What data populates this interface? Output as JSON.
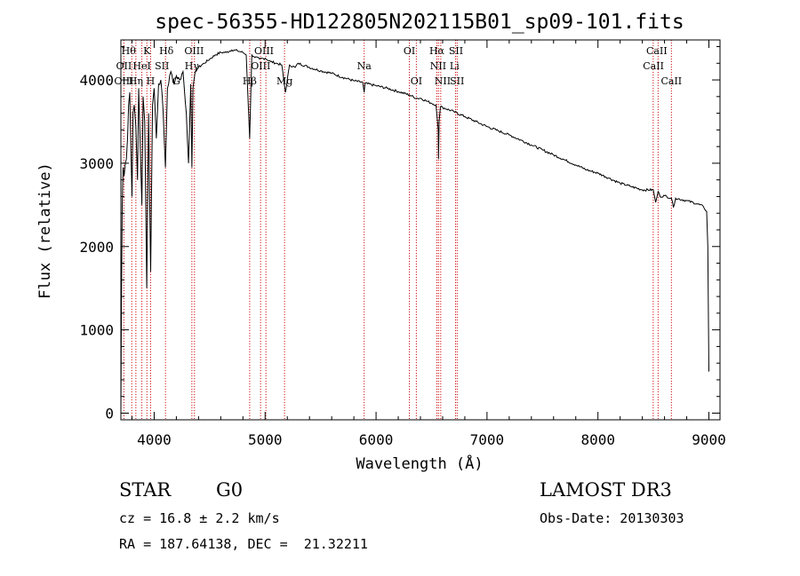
{
  "chart_data": {
    "type": "line",
    "title": "spec-56355-HD122805N202115B01_sp09-101.fits",
    "xlabel": "Wavelength (Å)",
    "ylabel": "Flux (relative)",
    "xlim": [
      3700,
      9100
    ],
    "ylim": [
      -80,
      4480
    ],
    "xticks": [
      4000,
      5000,
      6000,
      7000,
      8000,
      9000
    ],
    "yticks": [
      0,
      1000,
      2000,
      3000,
      4000
    ],
    "series": [
      {
        "name": "spectrum",
        "x": [
          3700,
          3705,
          3712,
          3720,
          3730,
          3740,
          3750,
          3760,
          3770,
          3780,
          3790,
          3800,
          3810,
          3820,
          3835,
          3850,
          3860,
          3875,
          3889,
          3900,
          3915,
          3933,
          3950,
          3968,
          3985,
          4000,
          4020,
          4040,
          4060,
          4080,
          4101,
          4120,
          4150,
          4180,
          4200,
          4230,
          4260,
          4290,
          4310,
          4330,
          4340,
          4350,
          4370,
          4400,
          4450,
          4500,
          4550,
          4600,
          4650,
          4700,
          4750,
          4800,
          4830,
          4861,
          4880,
          4900,
          4950,
          5000,
          5050,
          5100,
          5150,
          5183,
          5220,
          5270,
          5300,
          5400,
          5500,
          5600,
          5700,
          5800,
          5880,
          5893,
          5900,
          6000,
          6100,
          6200,
          6300,
          6363,
          6400,
          6450,
          6500,
          6540,
          6560,
          6563,
          6568,
          6580,
          6600,
          6700,
          6800,
          6900,
          7000,
          7100,
          7200,
          7300,
          7400,
          7500,
          7600,
          7700,
          7800,
          7900,
          8000,
          8100,
          8200,
          8300,
          8400,
          8498,
          8520,
          8542,
          8560,
          8600,
          8662,
          8680,
          8700,
          8800,
          8900,
          8950,
          8980,
          8990,
          9000
        ],
        "values": [
          0,
          1300,
          2500,
          2950,
          2850,
          3000,
          3050,
          3300,
          3700,
          3850,
          3200,
          2600,
          3600,
          3700,
          3450,
          2800,
          3900,
          3200,
          2500,
          3800,
          3500,
          1500,
          3600,
          1700,
          3700,
          3900,
          3300,
          3950,
          4000,
          3650,
          2950,
          3900,
          4100,
          3950,
          4050,
          4000,
          4100,
          3600,
          3000,
          3950,
          2950,
          3900,
          4100,
          4150,
          4200,
          4250,
          4300,
          4330,
          4330,
          4360,
          4350,
          4330,
          4300,
          3300,
          4300,
          4280,
          4250,
          4260,
          4220,
          4200,
          4180,
          3850,
          4180,
          4150,
          4200,
          4150,
          4110,
          4080,
          4030,
          3990,
          3970,
          3850,
          3960,
          3930,
          3900,
          3860,
          3820,
          3780,
          3780,
          3750,
          3720,
          3700,
          3400,
          3050,
          3500,
          3680,
          3670,
          3620,
          3560,
          3500,
          3440,
          3390,
          3340,
          3280,
          3220,
          3160,
          3100,
          3040,
          2980,
          2920,
          2880,
          2820,
          2760,
          2720,
          2680,
          2680,
          2530,
          2660,
          2600,
          2610,
          2580,
          2470,
          2580,
          2550,
          2510,
          2480,
          2420,
          2000,
          500
        ]
      }
    ],
    "reference_lines": [
      {
        "name": "OII",
        "x": 3727
      },
      {
        "name": "Hθ",
        "x": 3798
      },
      {
        "name": "Hη",
        "x": 3835
      },
      {
        "name": "HeI",
        "x": 3889
      },
      {
        "name": "K",
        "x": 3934
      },
      {
        "name": "H",
        "x": 3968
      },
      {
        "name": "Hδ",
        "x": 4102
      },
      {
        "name": "Hγ",
        "x": 4340
      },
      {
        "name": "OIII",
        "x": 4363
      },
      {
        "name": "Hβ",
        "x": 4861
      },
      {
        "name": "OIII",
        "x": 4959
      },
      {
        "name": "OIII",
        "x": 5007
      },
      {
        "name": "Mg",
        "x": 5175
      },
      {
        "name": "Na",
        "x": 5893
      },
      {
        "name": "OI",
        "x": 6300
      },
      {
        "name": "OI",
        "x": 6363
      },
      {
        "name": "NII",
        "x": 6548
      },
      {
        "name": "Hα",
        "x": 6563
      },
      {
        "name": "NII",
        "x": 6583
      },
      {
        "name": "SII",
        "x": 6716
      },
      {
        "name": "SII",
        "x": 6731
      },
      {
        "name": "CaII",
        "x": 8498
      },
      {
        "name": "CaII",
        "x": 8542
      },
      {
        "name": "CaII",
        "x": 8662
      }
    ],
    "line_labels": [
      {
        "text": "Hθ",
        "x": 3770,
        "row": 0
      },
      {
        "text": "K",
        "x": 3934,
        "row": 0
      },
      {
        "text": "Hδ",
        "x": 4110,
        "row": 0
      },
      {
        "text": "OIII",
        "x": 4360,
        "row": 0
      },
      {
        "text": "OIII",
        "x": 4990,
        "row": 0
      },
      {
        "text": "OI",
        "x": 6300,
        "row": 0
      },
      {
        "text": "Hα",
        "x": 6548,
        "row": 0
      },
      {
        "text": "SII",
        "x": 6720,
        "row": 0
      },
      {
        "text": "CaII",
        "x": 8530,
        "row": 0
      },
      {
        "text": "OII",
        "x": 3727,
        "row": 1
      },
      {
        "text": "HeI",
        "x": 3889,
        "row": 1
      },
      {
        "text": "SII",
        "x": 4070,
        "row": 1
      },
      {
        "text": "Hγ",
        "x": 4340,
        "row": 1
      },
      {
        "text": "OIII",
        "x": 4960,
        "row": 1
      },
      {
        "text": "Na",
        "x": 5893,
        "row": 1
      },
      {
        "text": "NII",
        "x": 6560,
        "row": 1
      },
      {
        "text": "Li",
        "x": 6707,
        "row": 1
      },
      {
        "text": "CaII",
        "x": 8500,
        "row": 1
      },
      {
        "text": "OIII",
        "x": 3727,
        "row": 2
      },
      {
        "text": "Hη",
        "x": 3835,
        "row": 2
      },
      {
        "text": "H",
        "x": 3968,
        "row": 2
      },
      {
        "text": "G",
        "x": 4200,
        "row": 2
      },
      {
        "text": "Hβ",
        "x": 4861,
        "row": 2
      },
      {
        "text": "Mg",
        "x": 5175,
        "row": 2
      },
      {
        "text": "OI",
        "x": 6363,
        "row": 2
      },
      {
        "text": "NII",
        "x": 6600,
        "row": 2
      },
      {
        "text": "SII",
        "x": 6730,
        "row": 2
      },
      {
        "text": "CaII",
        "x": 8662,
        "row": 2
      }
    ],
    "colors": {
      "spectrum": "#000000",
      "reference": "#cc0000",
      "axes": "#000000"
    }
  },
  "info": {
    "object_type": "STAR",
    "subclass": "G0",
    "survey": "LAMOST DR3",
    "redshift": "cz = 16.8 ± 2.2 km/s",
    "obs_date": "Obs-Date: 20130303",
    "coords": "RA = 187.64138, DEC =  21.32211"
  }
}
